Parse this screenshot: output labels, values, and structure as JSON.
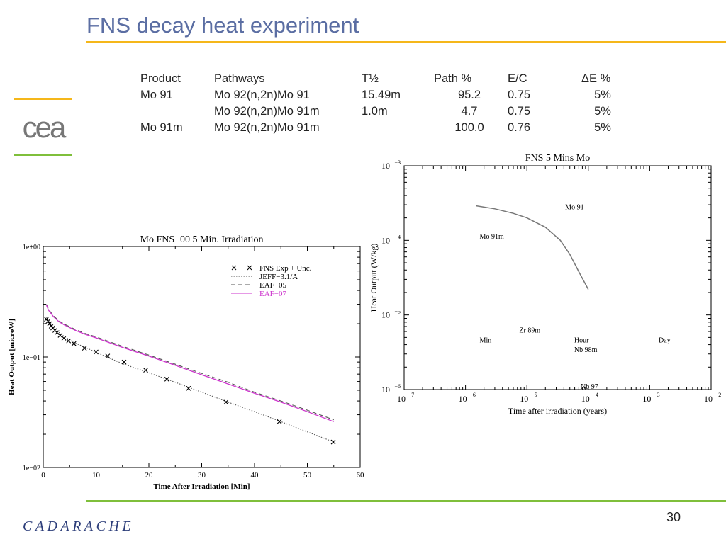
{
  "slide": {
    "title": "FNS decay heat experiment",
    "page_number": "30",
    "logo_top_text": "cea",
    "logo_bottom_text": "CADARACHE"
  },
  "table": {
    "headers": [
      "Product",
      "Pathways",
      "T½",
      "Path %",
      "E/C",
      "ΔE %"
    ],
    "rows": [
      [
        "Mo 91",
        "Mo 92(n,2n)Mo 91",
        "15.49m",
        "95.2",
        "0.75",
        "5%"
      ],
      [
        "",
        "Mo 92(n,2n)Mo 91m",
        "1.0m",
        "4.7",
        "0.75",
        "5%"
      ],
      [
        "Mo 91m",
        "Mo 92(n,2n)Mo 91m",
        "",
        "100.0",
        "0.76",
        "5%"
      ]
    ]
  },
  "chart_data": [
    {
      "type": "line",
      "title": "Mo FNS−00 5 Min. Irradiation",
      "xlabel": "Time After Irradiation [Min]",
      "ylabel": "Heat Output [microW]",
      "xlim": [
        0,
        60
      ],
      "ylim": [
        0.01,
        1
      ],
      "yscale": "log",
      "x_ticks": [
        0,
        10,
        20,
        30,
        40,
        50,
        60
      ],
      "x_tick_labels": [
        "0",
        "10",
        "20",
        "30",
        "40",
        "50",
        "60"
      ],
      "y_ticks": [
        0.01,
        0.1,
        1
      ],
      "y_tick_labels": [
        "1e−02",
        "1e−01",
        "1e+00"
      ],
      "legend_position": "top-right",
      "series": [
        {
          "name": "FNS Exp + Unc.",
          "style": "marker-x",
          "color": "#000000",
          "x": [
            0.6,
            0.9,
            1.2,
            1.5,
            1.8,
            2.2,
            2.6,
            3.2,
            3.9,
            4.8,
            5.8,
            7.8,
            10.0,
            12.2,
            15.3,
            19.4,
            23.4,
            27.5,
            34.6,
            44.7,
            54.9
          ],
          "y": [
            0.22,
            0.21,
            0.2,
            0.19,
            0.183,
            0.174,
            0.166,
            0.157,
            0.148,
            0.14,
            0.132,
            0.12,
            0.111,
            0.102,
            0.09,
            0.076,
            0.063,
            0.052,
            0.039,
            0.026,
            0.017
          ]
        },
        {
          "name": "JEFF−3.1/A",
          "style": "dotted",
          "color": "#555555",
          "x": [
            0.6,
            1,
            2,
            3,
            4,
            6,
            8,
            10,
            15,
            20,
            25,
            30,
            35,
            40,
            45,
            50,
            55
          ],
          "y": [
            0.23,
            0.212,
            0.185,
            0.167,
            0.153,
            0.134,
            0.122,
            0.11,
            0.087,
            0.072,
            0.059,
            0.048,
            0.039,
            0.032,
            0.026,
            0.021,
            0.017
          ]
        },
        {
          "name": "EAF−05",
          "style": "dashed",
          "color": "#555555",
          "x": [
            0.6,
            1,
            2,
            3,
            4,
            6,
            8,
            10,
            15,
            20,
            25,
            30,
            35,
            40,
            45,
            50,
            55
          ],
          "y": [
            0.3,
            0.27,
            0.234,
            0.212,
            0.198,
            0.178,
            0.163,
            0.152,
            0.125,
            0.104,
            0.086,
            0.071,
            0.059,
            0.048,
            0.04,
            0.033,
            0.027
          ]
        },
        {
          "name": "EAF−07",
          "style": "solid",
          "color": "#cc33cc",
          "x": [
            0.6,
            1,
            2,
            3,
            4,
            6,
            8,
            10,
            15,
            20,
            25,
            30,
            35,
            40,
            45,
            50,
            55
          ],
          "y": [
            0.295,
            0.265,
            0.23,
            0.208,
            0.195,
            0.175,
            0.16,
            0.149,
            0.122,
            0.102,
            0.084,
            0.069,
            0.057,
            0.047,
            0.039,
            0.032,
            0.026
          ]
        }
      ]
    },
    {
      "type": "line",
      "title": "FNS 5 Mins Mo",
      "xlabel": "Time after irradiation (years)",
      "ylabel": "Heat Output (W/kg)",
      "xscale": "log",
      "yscale": "log",
      "xlim": [
        1e-07,
        0.01
      ],
      "ylim": [
        1e-06,
        0.001
      ],
      "x_tick_base": [
        "10",
        "10",
        "10",
        "10",
        "10",
        "10"
      ],
      "x_tick_exponents": [
        "−7",
        "−6",
        "−5",
        "−4",
        "−3",
        "−2"
      ],
      "y_tick_base": [
        "10",
        "10",
        "10",
        "10"
      ],
      "y_tick_exponents": [
        "−6",
        "−5",
        "−4",
        "−3"
      ],
      "series": [
        {
          "style": "solid",
          "color": "#777777",
          "x": [
            1.5e-06,
            3e-06,
            6e-06,
            1e-05,
            2e-05,
            3.5e-05,
            5e-05,
            7e-05,
            0.0001
          ],
          "y": [
            0.00029,
            0.000265,
            0.00023,
            0.0002,
            0.00015,
            0.0001,
            6.5e-05,
            3.8e-05,
            2.2e-05
          ]
        }
      ],
      "annotations": [
        {
          "text": "Mo 91",
          "x": 4.2e-05,
          "y": 0.00026
        },
        {
          "text": "Mo 91m",
          "x": 1.7e-06,
          "y": 0.000105
        },
        {
          "text": "Zr 89m",
          "x": 7.5e-06,
          "y": 5.8e-06
        },
        {
          "text": "Min",
          "x": 1.7e-06,
          "y": 4.3e-06
        },
        {
          "text": "Hour",
          "x": 5.9e-05,
          "y": 4.3e-06
        },
        {
          "text": "Nb 98m",
          "x": 5.9e-05,
          "y": 3.2e-06
        },
        {
          "text": "Day",
          "x": 0.0014,
          "y": 4.3e-06
        },
        {
          "text": "Nb 97",
          "x": 7.5e-05,
          "y": 1.02e-06
        }
      ]
    }
  ]
}
